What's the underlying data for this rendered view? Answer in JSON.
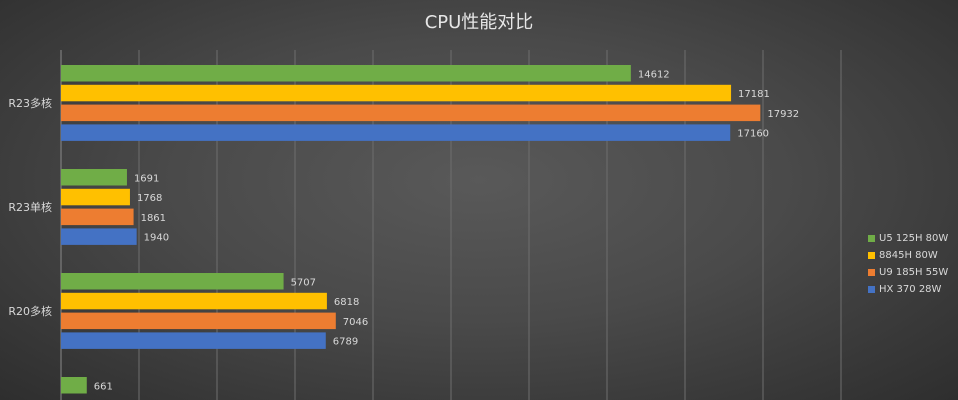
{
  "chart_data": {
    "type": "bar",
    "orientation": "horizontal",
    "title": "CPU性能对比",
    "categories": [
      "R23多核",
      "R23单核",
      "R20多核",
      ""
    ],
    "series": [
      {
        "name": "U5 125H 80W",
        "color": "#70ad47",
        "values": [
          14612,
          1691,
          5707,
          661
        ]
      },
      {
        "name": "8845H 80W",
        "color": "#ffc000",
        "values": [
          17181,
          1768,
          6818,
          null
        ]
      },
      {
        "name": "U9 185H 55W",
        "color": "#ed7d31",
        "values": [
          17932,
          1861,
          7046,
          null
        ]
      },
      {
        "name": "HX 370 28W",
        "color": "#4472c4",
        "values": [
          17160,
          1940,
          6789,
          null
        ]
      }
    ],
    "xlim": [
      0,
      20000
    ],
    "grid": true,
    "legend_position": "right"
  }
}
